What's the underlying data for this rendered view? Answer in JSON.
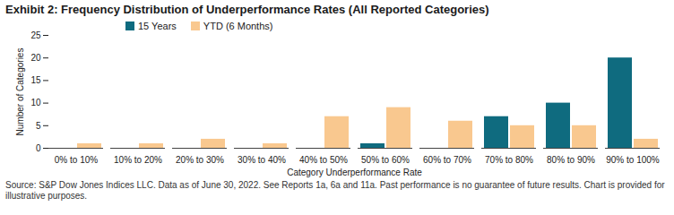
{
  "chart_data": {
    "type": "bar",
    "title": "Exhibit 2: Frequency Distribution of Underperformance Rates (All Reported Categories)",
    "xlabel": "Category Underperformance Rate",
    "ylabel": "Number of Categories",
    "categories": [
      "0% to 10%",
      "10% to 20%",
      "20% to 30%",
      "30% to 40%",
      "40% to 50%",
      "50% to 60%",
      "60% to 70%",
      "70% to 80%",
      "80% to 90%",
      "90% to 100%"
    ],
    "series": [
      {
        "name": "15 Years",
        "color": "#0f6b7f",
        "values": [
          0,
          0,
          0,
          0,
          0,
          1,
          0,
          7,
          10,
          20
        ]
      },
      {
        "name": "YTD (6 Months)",
        "color": "#f9c88f",
        "values": [
          1,
          1,
          2,
          1,
          7,
          9,
          6,
          5,
          5,
          2
        ]
      }
    ],
    "ylim": [
      0,
      25
    ],
    "yticks": [
      0,
      5,
      10,
      15,
      20,
      25
    ],
    "grid": false,
    "legend": "top",
    "source": "Source: S&P Dow Jones Indices LLC. Data as of June 30, 2022. See Reports 1a, 6a and 11a. Past performance is no guarantee of future results. Chart is provided for illustrative purposes."
  }
}
